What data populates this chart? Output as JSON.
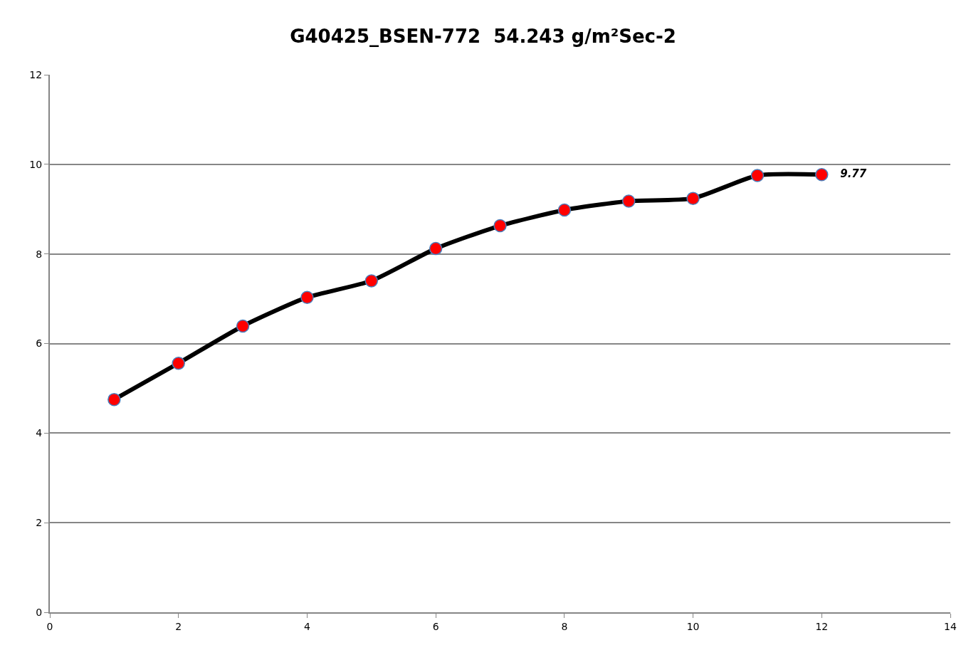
{
  "chart_data": {
    "type": "line",
    "title": "G40425_BSEN-772  54.243 g/m²Sec-2",
    "x": [
      1,
      2,
      3,
      4,
      5,
      6,
      7,
      8,
      9,
      10,
      11,
      12
    ],
    "series": [
      {
        "color": "#000000",
        "colors": [
          "#ff0000",
          "#ff0000",
          "#ff0000",
          "#ff0000",
          "#ff0000",
          "#ff0000",
          "#ff0000",
          "#ff0000",
          "#ff0000",
          "#ff0000",
          "#ff0000",
          "#ff0000"
        ],
        "values": [
          4.75,
          5.56,
          6.39,
          7.03,
          7.4,
          8.12,
          8.63,
          8.98,
          9.18,
          9.24,
          9.75,
          9.77
        ],
        "value_labels": [
          null,
          null,
          null,
          null,
          null,
          null,
          null,
          null,
          null,
          null,
          null,
          "9.77"
        ]
      }
    ],
    "xlim": [
      0,
      14
    ],
    "xticks": [
      0,
      2,
      4,
      6,
      8,
      10,
      12,
      14
    ],
    "ylim": [
      0,
      12
    ],
    "yticks": [
      0,
      2,
      4,
      6,
      8,
      10,
      12
    ],
    "grid": "y",
    "marker": "circle",
    "line_style": "solid"
  }
}
